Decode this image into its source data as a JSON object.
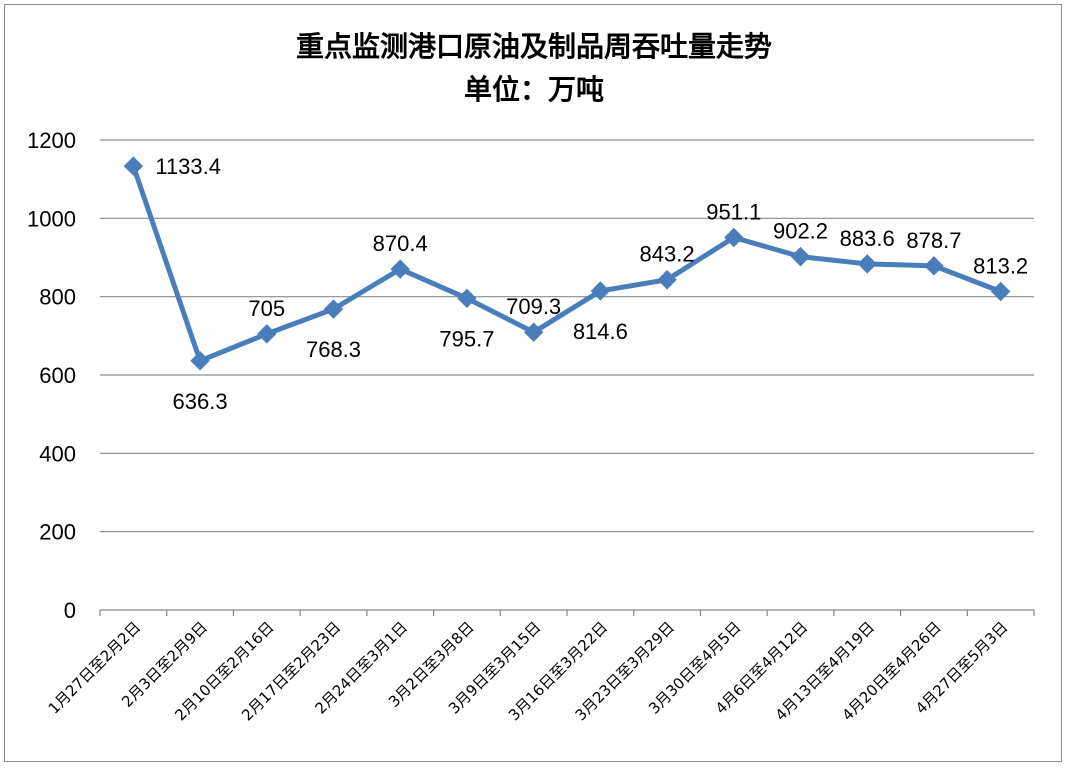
{
  "chart_data": {
    "type": "line",
    "title": "重点监测港口原油及制品周吞吐量走势",
    "subtitle": "单位：万吨",
    "ylim": [
      0,
      1200
    ],
    "yticks": [
      "0",
      "200",
      "400",
      "600",
      "800",
      "1000",
      "1200"
    ],
    "grid": true,
    "categories": [
      "1月27日至2月2日",
      "2月3日至2月9日",
      "2月10日至2月16日",
      "2月17日至2月23日",
      "2月24日至3月1日",
      "3月2日至3月8日",
      "3月9日至3月15日",
      "3月16日至3月22日",
      "3月23日至3月29日",
      "3月30日至4月5日",
      "4月6日至4月12日",
      "4月13日至4月19日",
      "4月20日至4月26日",
      "4月27日至5月3日"
    ],
    "series": [
      {
        "values": [
          1133.4,
          636.3,
          705,
          768.3,
          870.4,
          795.7,
          709.3,
          814.6,
          843.2,
          951.1,
          902.2,
          883.6,
          878.7,
          813.2
        ],
        "labels": [
          "1133.4",
          "636.3",
          "705",
          "768.3",
          "870.4",
          "795.7",
          "709.3",
          "814.6",
          "843.2",
          "951.1",
          "902.2",
          "883.6",
          "878.7",
          "813.2"
        ],
        "color": "#4a7ebb"
      }
    ]
  }
}
